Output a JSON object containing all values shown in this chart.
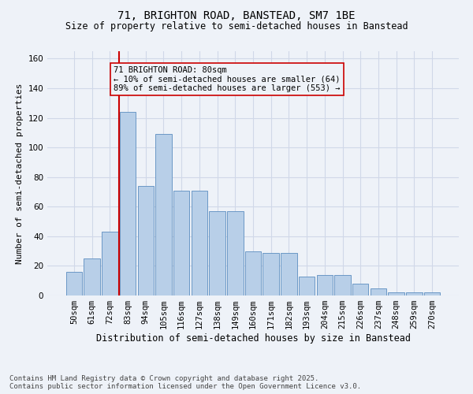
{
  "title": "71, BRIGHTON ROAD, BANSTEAD, SM7 1BE",
  "subtitle": "Size of property relative to semi-detached houses in Banstead",
  "xlabel": "Distribution of semi-detached houses by size in Banstead",
  "ylabel": "Number of semi-detached properties",
  "categories": [
    "50sqm",
    "61sqm",
    "72sqm",
    "83sqm",
    "94sqm",
    "105sqm",
    "116sqm",
    "127sqm",
    "138sqm",
    "149sqm",
    "160sqm",
    "171sqm",
    "182sqm",
    "193sqm",
    "204sqm",
    "215sqm",
    "226sqm",
    "237sqm",
    "248sqm",
    "259sqm",
    "270sqm"
  ],
  "values": [
    16,
    25,
    43,
    124,
    74,
    109,
    71,
    71,
    57,
    57,
    30,
    29,
    29,
    13,
    14,
    14,
    8,
    5,
    2,
    2,
    2
  ],
  "bar_color": "#b8cfe8",
  "bar_edge_color": "#5b8dc0",
  "grid_color": "#d0d8e8",
  "background_color": "#eef2f8",
  "property_bin_index": 3,
  "property_label": "71 BRIGHTON ROAD: 80sqm",
  "pct_smaller": 10,
  "n_smaller": 64,
  "pct_larger": 89,
  "n_larger": 553,
  "vline_color": "#cc0000",
  "annotation_box_edge_color": "#cc0000",
  "ylim": [
    0,
    165
  ],
  "yticks": [
    0,
    20,
    40,
    60,
    80,
    100,
    120,
    140,
    160
  ],
  "footer1": "Contains HM Land Registry data © Crown copyright and database right 2025.",
  "footer2": "Contains public sector information licensed under the Open Government Licence v3.0.",
  "title_fontsize": 10,
  "subtitle_fontsize": 8.5,
  "xlabel_fontsize": 8.5,
  "ylabel_fontsize": 8,
  "tick_fontsize": 7.5,
  "annotation_fontsize": 7.5,
  "footer_fontsize": 6.5
}
